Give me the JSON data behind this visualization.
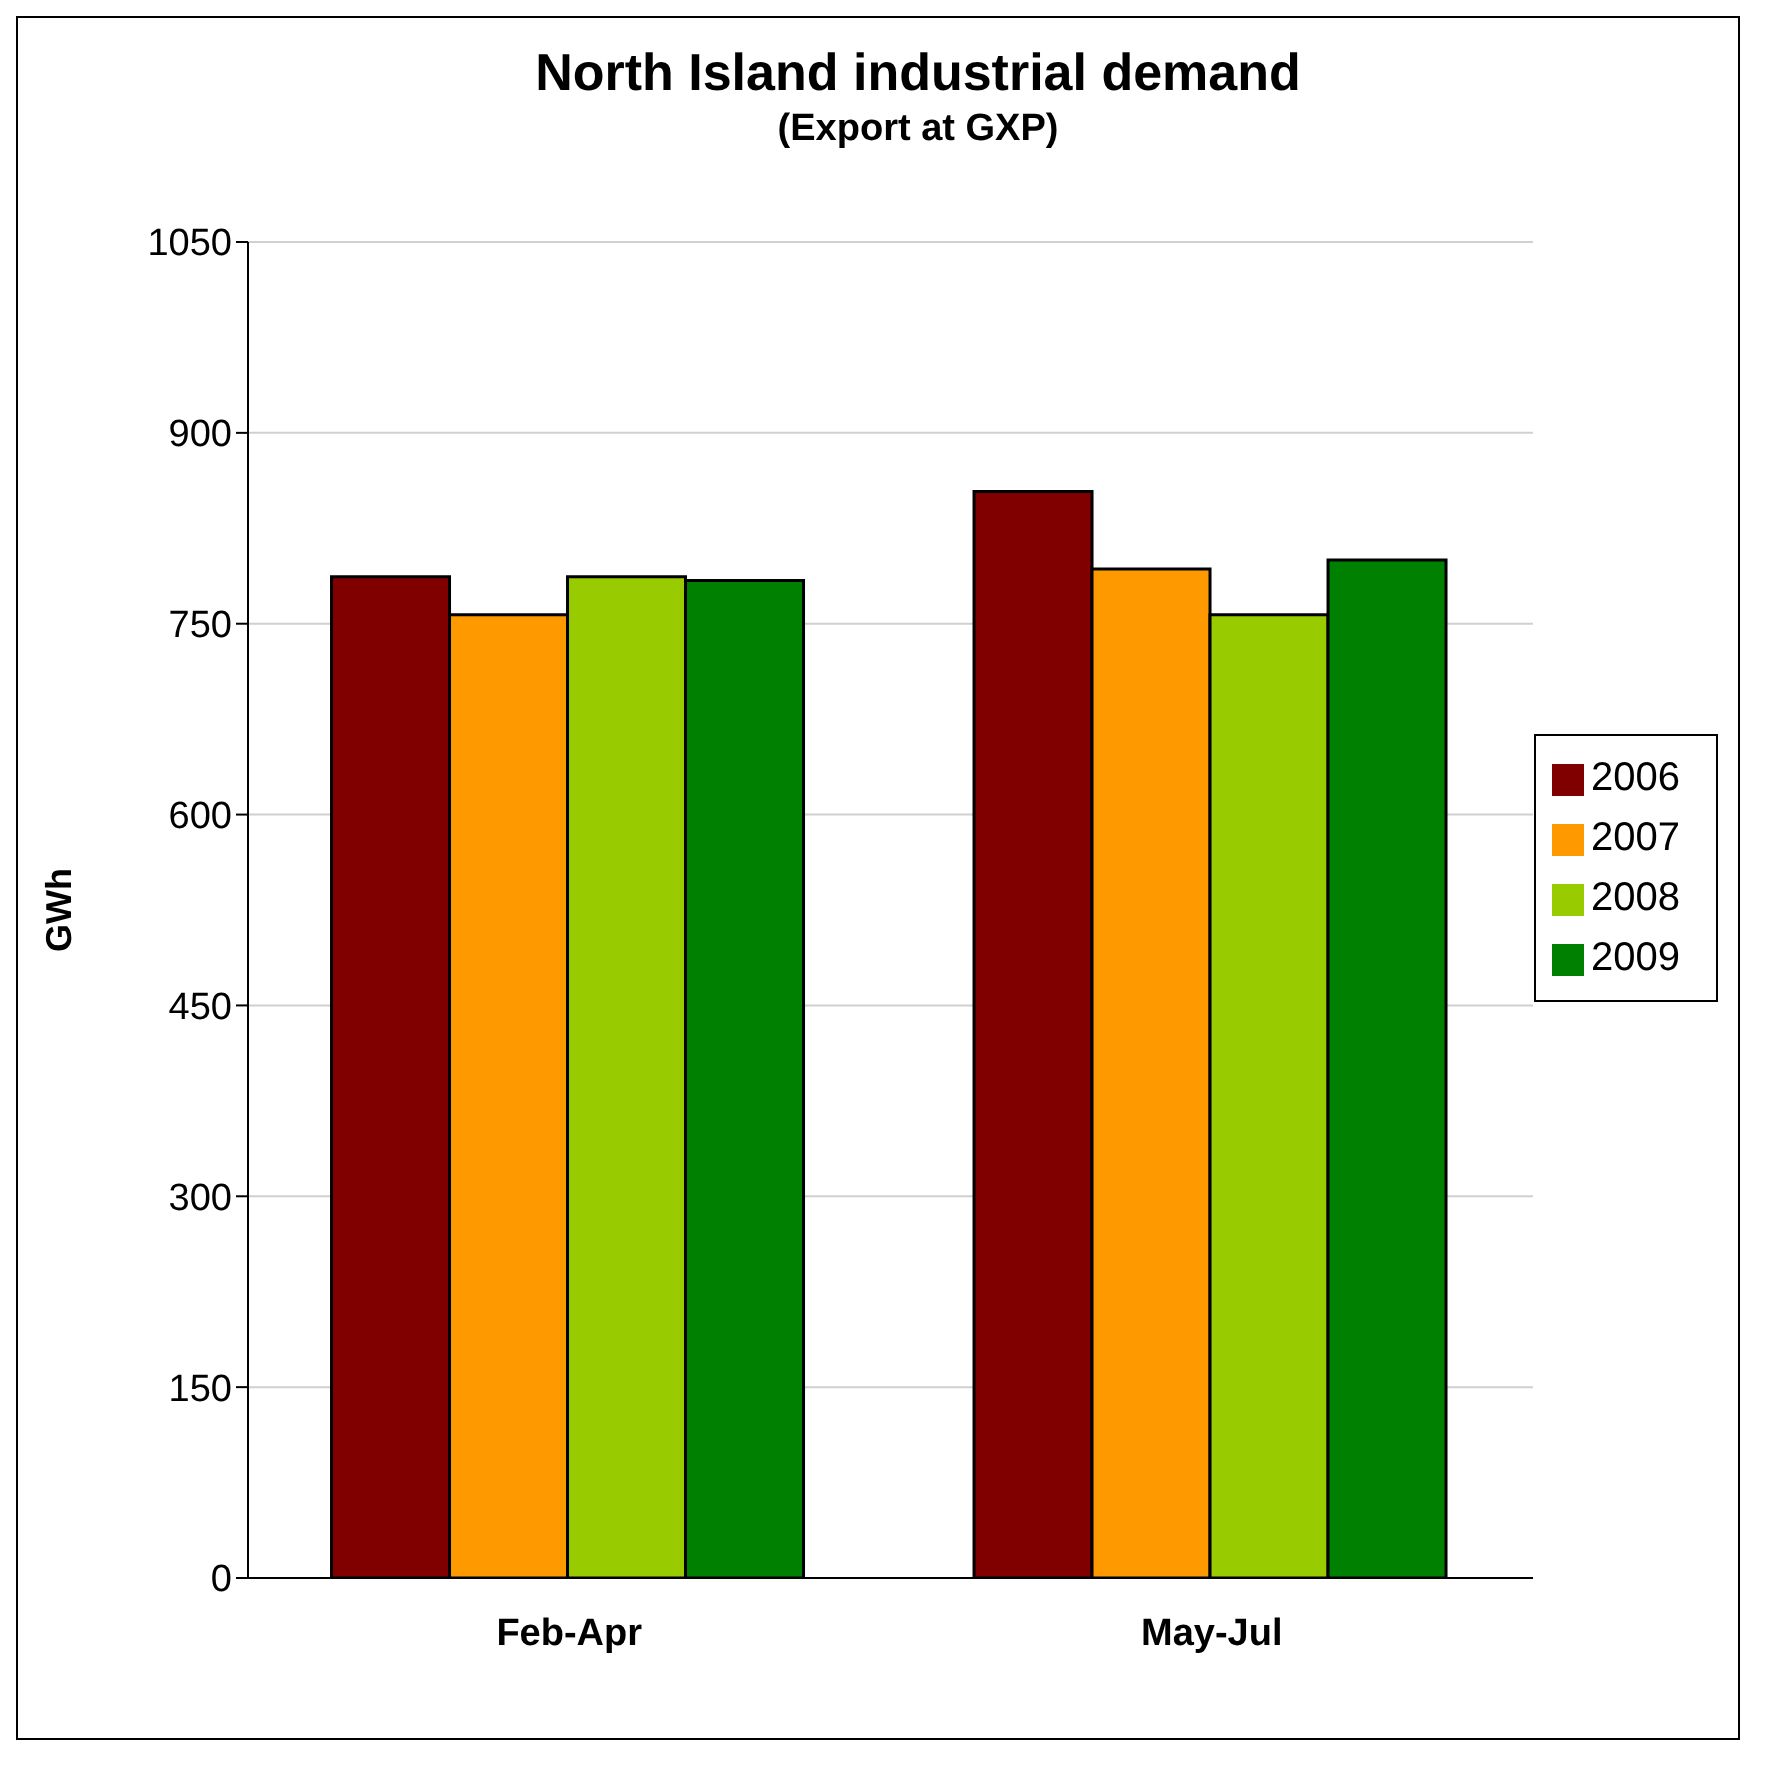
{
  "chart_data": {
    "type": "bar",
    "title": "North Island industrial demand",
    "subtitle": "(Export at GXP)",
    "ylabel": "GWh",
    "categories": [
      "Feb-Apr",
      "May-Jul"
    ],
    "series": [
      {
        "name": "2006",
        "color": "#800000",
        "values": [
          787,
          854
        ]
      },
      {
        "name": "2007",
        "color": "#ff9900",
        "values": [
          757,
          793
        ]
      },
      {
        "name": "2008",
        "color": "#99cc00",
        "values": [
          787,
          757
        ]
      },
      {
        "name": "2009",
        "color": "#008000",
        "values": [
          784,
          800
        ]
      }
    ],
    "ylim": [
      0,
      1050
    ],
    "yticks": [
      0,
      150,
      300,
      450,
      600,
      750,
      900,
      1050
    ],
    "grid": "y",
    "legend": "right"
  }
}
